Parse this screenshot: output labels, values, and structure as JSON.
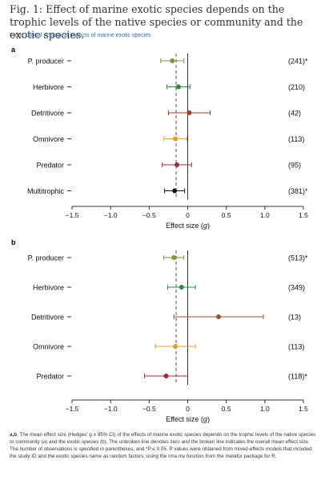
{
  "figure": {
    "title": "Fig. 1: Effect of marine exotic species depends on the trophic levels of the native species or community and the exotic species.",
    "from_prefix": "From: ",
    "from_link": "Global ecological impacts of marine exotic species",
    "caption_letters": "a,b",
    "caption_text": ", The mean effect size (Hedges’ g ± 95% CI) of the effects of marine exotic species depends on the trophic levels of the native species or community (a) and the exotic species (b). The unbroken line denotes zero and the broken line indicates the overall mean effect size. The number of observations is specified in parentheses, and *P ≤ 0.05. P values were obtained from mixed-effects models that included the study ID and the exotic species name as random factors, using the rma.mv function from the metafor package for R."
  },
  "chart_data": [
    {
      "type": "scatter",
      "panel": "a",
      "xlabel": "Effect size (g)",
      "xlim": [
        -1.5,
        1.5
      ],
      "xticks": [
        -1.5,
        -1.0,
        -0.5,
        0,
        0.5,
        1.0,
        1.5
      ],
      "xtick_labels": [
        "−1.5",
        "−1.0",
        "−0.5",
        "0",
        "0.5",
        "1.0",
        "1.5"
      ],
      "overall_mean": -0.15,
      "categories": [
        {
          "label": "P. producer",
          "mean": -0.2,
          "ci": [
            -0.35,
            -0.05
          ],
          "n": "(241)*",
          "color": "#7a9a3a"
        },
        {
          "label": "Herbivore",
          "mean": -0.12,
          "ci": [
            -0.27,
            0.03
          ],
          "n": "(210)",
          "color": "#2e8b3e"
        },
        {
          "label": "Detritivore",
          "mean": 0.02,
          "ci": [
            -0.25,
            0.29
          ],
          "n": "(42)",
          "color": "#a0401e"
        },
        {
          "label": "Omnivore",
          "mean": -0.16,
          "ci": [
            -0.31,
            -0.01
          ],
          "n": "(113)",
          "color": "#e0a020"
        },
        {
          "label": "Predator",
          "mean": -0.14,
          "ci": [
            -0.33,
            0.05
          ],
          "n": "(95)",
          "color": "#a8283a"
        },
        {
          "label": "Multitrophic",
          "mean": -0.17,
          "ci": [
            -0.3,
            -0.04
          ],
          "n": "(381)*",
          "color": "#111111"
        }
      ]
    },
    {
      "type": "scatter",
      "panel": "b",
      "xlabel": "Effect size (g)",
      "xlim": [
        -1.5,
        1.5
      ],
      "xticks": [
        -1.5,
        -1.0,
        -0.5,
        0,
        0.5,
        1.0,
        1.5
      ],
      "xtick_labels": [
        "−1.5",
        "−1.0",
        "−0.5",
        "0",
        "0.5",
        "1.0",
        "1.5"
      ],
      "overall_mean": -0.15,
      "categories": [
        {
          "label": "P. producer",
          "mean": -0.18,
          "ci": [
            -0.31,
            -0.05
          ],
          "n": "(513)*",
          "color": "#7a9a3a"
        },
        {
          "label": "Herbivore",
          "mean": -0.08,
          "ci": [
            -0.26,
            0.1
          ],
          "n": "(349)",
          "color": "#2e8b3e"
        },
        {
          "label": "Detritivore",
          "mean": 0.4,
          "ci": [
            -0.18,
            0.98
          ],
          "n": "(13)",
          "color": "#a0522d"
        },
        {
          "label": "Omnivore",
          "mean": -0.16,
          "ci": [
            -0.42,
            0.1
          ],
          "n": "(113)",
          "color": "#e0a020"
        },
        {
          "label": "Predator",
          "mean": -0.28,
          "ci": [
            -0.56,
            0.0
          ],
          "n": "(118)*",
          "color": "#a8283a"
        }
      ]
    }
  ]
}
